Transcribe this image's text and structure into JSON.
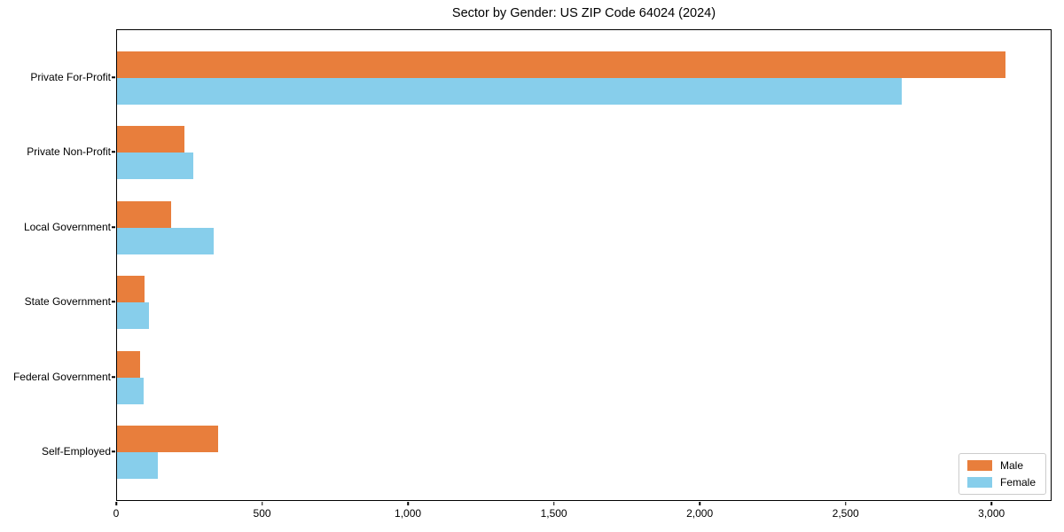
{
  "title": "Sector by Gender: US ZIP Code 64024 (2024)",
  "chart_data": {
    "type": "bar",
    "orientation": "horizontal",
    "title": "Sector by Gender: US ZIP Code 64024 (2024)",
    "categories": [
      "Private For-Profit",
      "Private Non-Profit",
      "Local Government",
      "State Government",
      "Federal Government",
      "Self-Employed"
    ],
    "series": [
      {
        "name": "Male",
        "color": "#e87e3c",
        "values": [
          3045,
          230,
          185,
          95,
          80,
          345
        ]
      },
      {
        "name": "Female",
        "color": "#87ceeb",
        "values": [
          2690,
          260,
          330,
          110,
          90,
          140
        ]
      }
    ],
    "xlabel": "",
    "ylabel": "",
    "xlim": [
      0,
      3200
    ],
    "xticks": [
      0,
      500,
      1000,
      1500,
      2000,
      2500,
      3000
    ],
    "xtick_labels": [
      "0",
      "500",
      "1,000",
      "1,500",
      "2,000",
      "2,500",
      "3,000"
    ],
    "grid": false,
    "legend_position": "lower right",
    "colors": {
      "male": "#e87e3c",
      "female": "#87ceeb",
      "axis": "#000000",
      "legend_border": "#cccccc",
      "background": "#ffffff"
    }
  }
}
